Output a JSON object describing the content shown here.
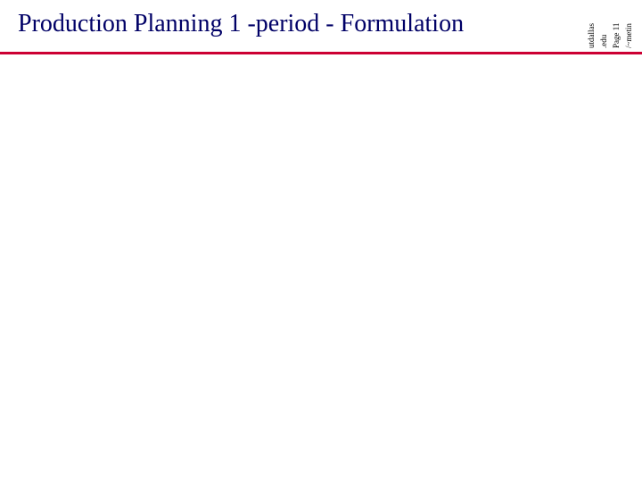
{
  "slide": {
    "title": "Production Planning 1 -period - Formulation",
    "title_color": "#000066",
    "underline_color": "#cc0033",
    "background_color": "#ffffff"
  },
  "side_notes": {
    "line1": "utdallas",
    "line2": ".edu",
    "line3": "Page 11",
    "line4": "/~metin"
  }
}
